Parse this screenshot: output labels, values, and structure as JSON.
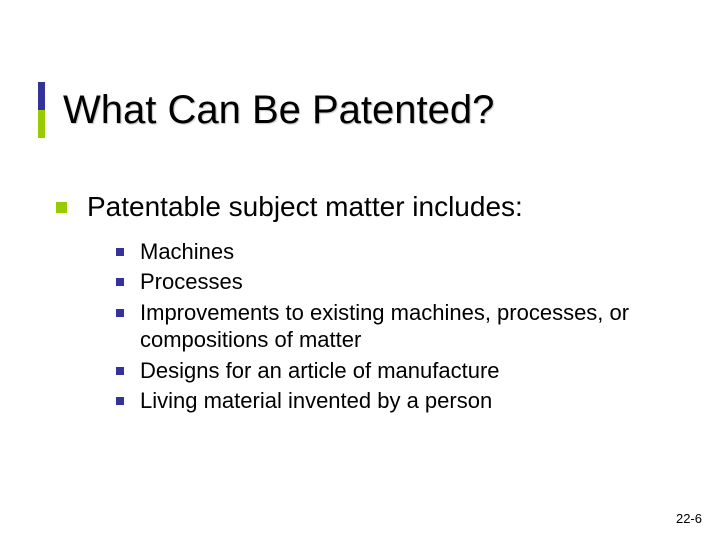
{
  "title": "What Can Be Patented?",
  "accent_bar_top_color": "#333399",
  "accent_bar_bottom_color": "#99cc00",
  "l1_bullet_color": "#99cc00",
  "l2_bullet_color": "#333399",
  "main_item": "Patentable subject matter includes:",
  "sub_items": [
    "Machines",
    "Processes",
    "Improvements to existing machines, processes, or compositions of matter",
    "Designs for an article of manufacture",
    "Living material invented by a person"
  ],
  "page_number": "22-6",
  "title_fontsize": 40,
  "l1_fontsize": 28,
  "l2_fontsize": 22
}
